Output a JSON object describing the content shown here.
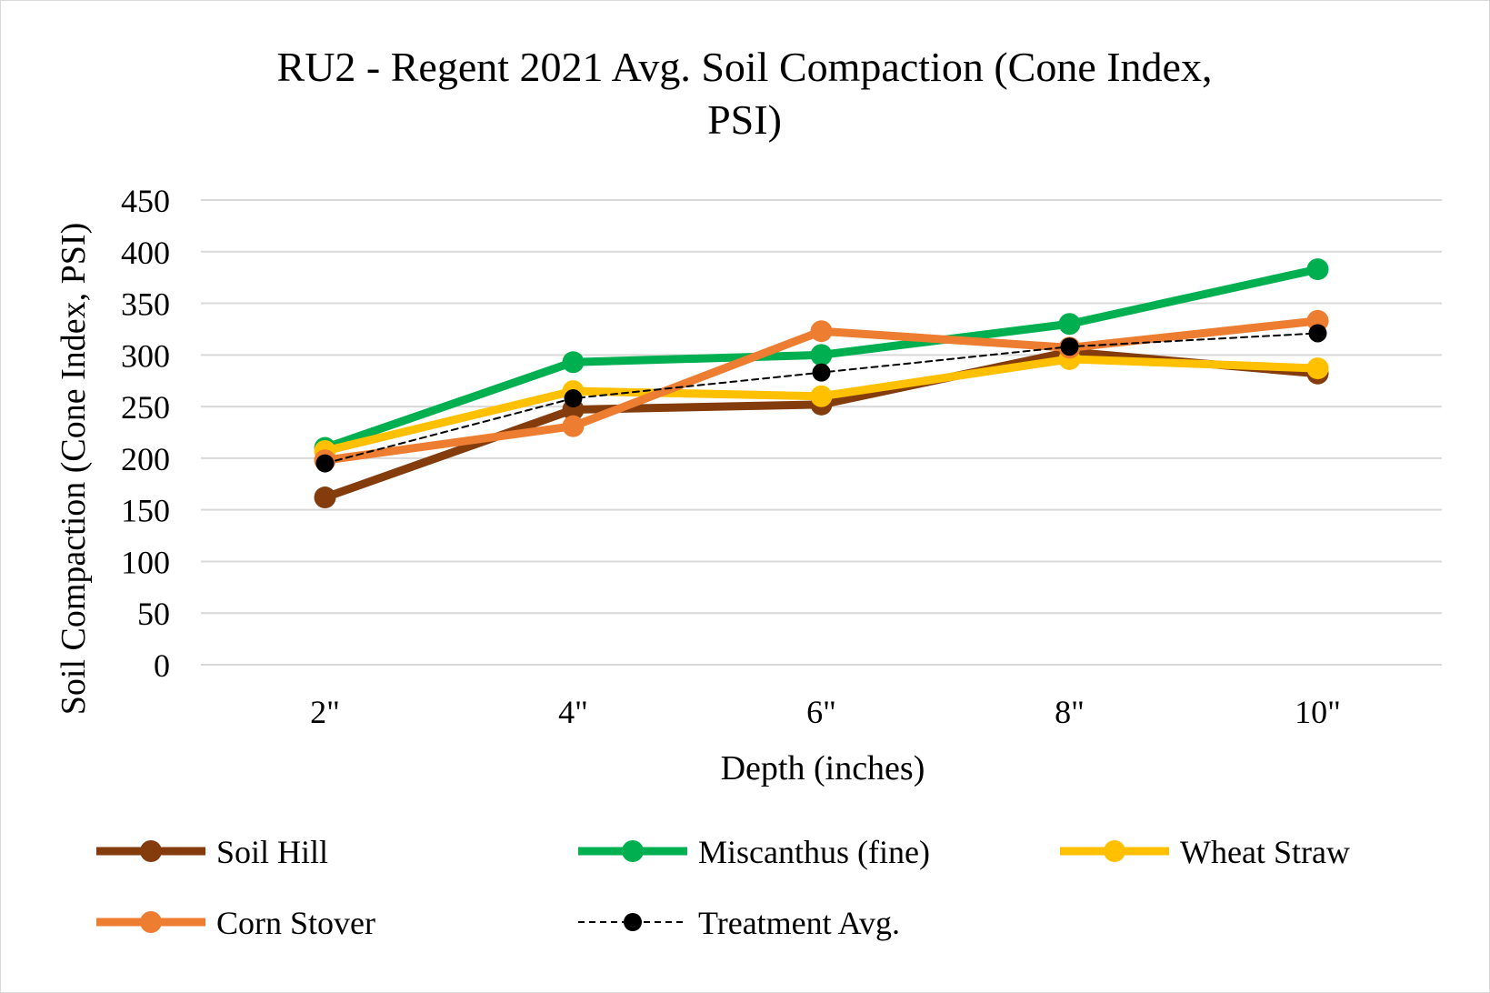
{
  "chart_data": {
    "type": "line",
    "title_lines": [
      "RU2 - Regent 2021 Avg. Soil Compaction (Cone Index,",
      "PSI)"
    ],
    "xlabel": "Depth (inches)",
    "ylabel": "Soil Compaction (Cone Index, PSI)",
    "categories": [
      "2\"",
      "4\"",
      "6\"",
      "8\"",
      "10\""
    ],
    "ylim": [
      0,
      450
    ],
    "yticks": [
      "0",
      "50",
      "100",
      "150",
      "200",
      "250",
      "300",
      "350",
      "400",
      "450"
    ],
    "grid": true,
    "legend_position": "bottom",
    "series": [
      {
        "name": "Soil Hill",
        "color": "#843c0c",
        "dashed": false,
        "values": [
          162,
          247,
          252,
          303,
          282
        ]
      },
      {
        "name": "Miscanthus (fine)",
        "color": "#00b050",
        "dashed": false,
        "values": [
          210,
          293,
          300,
          330,
          383
        ]
      },
      {
        "name": "Wheat Straw",
        "color": "#ffc000",
        "dashed": false,
        "values": [
          207,
          265,
          260,
          296,
          287
        ]
      },
      {
        "name": "Corn Stover",
        "color": "#ed7d31",
        "dashed": false,
        "values": [
          198,
          231,
          323,
          307,
          333
        ]
      },
      {
        "name": "Treatment Avg.",
        "color": "#000000",
        "dashed": true,
        "values": [
          195,
          258,
          283,
          308,
          321
        ]
      }
    ]
  }
}
